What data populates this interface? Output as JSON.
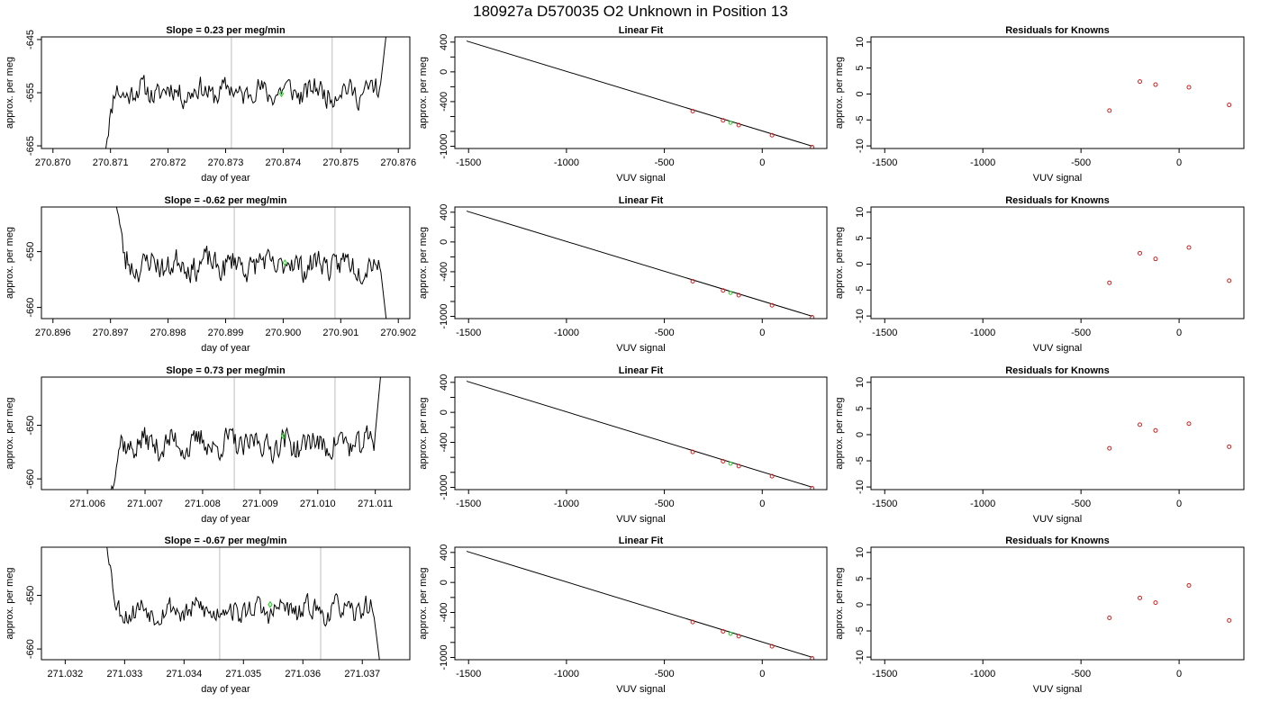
{
  "title": "180927a      D570035   O2 Unknown in Position  13",
  "colors": {
    "trace": "#000000",
    "marker": "#22cc22",
    "residual": "#cc2222",
    "vline": "#c8c8c8",
    "frame": "#000000"
  },
  "chart_data": [
    {
      "type": "line",
      "panel": "row1-time",
      "title": "Slope =  0.23  per meg/min",
      "xlabel": "day of year",
      "ylabel": "approx. per meg",
      "xlim": [
        270.8698,
        270.8762
      ],
      "ylim": [
        -665.5,
        -644.5
      ],
      "xticks": [
        "270.870",
        "270.871",
        "270.872",
        "270.873",
        "270.874",
        "270.875",
        "270.876"
      ],
      "xtick_values": [
        270.87,
        270.871,
        270.872,
        270.873,
        270.874,
        270.875,
        270.876
      ],
      "yticks": [
        "-665",
        "-655",
        "-645"
      ],
      "ytick_values": [
        -665,
        -655,
        -645
      ],
      "vlines": [
        270.8731,
        270.87485
      ],
      "trace": {
        "x_start": 270.8709,
        "x_end": 270.8758,
        "baseline": -654.8,
        "start_value": -666,
        "end_value": -643,
        "noise": 2.0,
        "seed": 11
      },
      "marker": {
        "x": 270.87397,
        "y": -655.2
      }
    },
    {
      "type": "scatter",
      "panel": "row1-fit",
      "title": "Linear Fit",
      "xlabel": "VUV signal",
      "ylabel": "approx. per meg",
      "xlim": [
        -1570,
        330
      ],
      "ylim": [
        -1030,
        470
      ],
      "xticks": [
        "-1500",
        "-1000",
        "-500",
        "0"
      ],
      "xtick_values": [
        -1500,
        -1000,
        -500,
        0
      ],
      "yticks": [
        "-1000",
        "-800",
        "-600",
        "-400",
        "-200",
        "0",
        "200",
        "400"
      ],
      "ytick_values": [
        -1000,
        -800,
        -600,
        -400,
        -200,
        0,
        200,
        400
      ],
      "ytick_labels_shown": [
        "-1000",
        "-400",
        "0",
        "400"
      ],
      "line": {
        "x": [
          -1510,
          255
        ],
        "y": [
          415,
          -998
        ]
      },
      "knowns": {
        "x": [
          -355,
          -200,
          -120,
          50,
          255
        ],
        "y": [
          -528,
          -652,
          -716,
          -852,
          -1012
        ]
      },
      "unknown": {
        "x": -162,
        "y": -683
      }
    },
    {
      "type": "scatter",
      "panel": "row1-resid",
      "title": "Residuals for Knowns",
      "xlabel": "VUV signal",
      "ylabel": "approx. per meg",
      "xlim": [
        -1570,
        330
      ],
      "ylim": [
        -10.5,
        11
      ],
      "xticks": [
        "-1500",
        "-1000",
        "-500",
        "0"
      ],
      "xtick_values": [
        -1500,
        -1000,
        -500,
        0
      ],
      "yticks": [
        "-10",
        "-5",
        "0",
        "5",
        "10"
      ],
      "ytick_values": [
        -10,
        -5,
        0,
        5,
        10
      ],
      "x": [
        -355,
        -200,
        -120,
        50,
        255
      ],
      "y": [
        -3.2,
        2.4,
        1.8,
        1.3,
        -2.1
      ]
    },
    {
      "type": "line",
      "panel": "row2-time",
      "title": "Slope =  -0.62  per meg/min",
      "xlabel": "day of year",
      "ylabel": "approx. per meg",
      "xlim": [
        270.8958,
        270.9022
      ],
      "ylim": [
        -662,
        -642
      ],
      "xticks": [
        "270.896",
        "270.897",
        "270.898",
        "270.899",
        "270.900",
        "270.901",
        "270.902"
      ],
      "xtick_values": [
        270.896,
        270.897,
        270.898,
        270.899,
        270.9,
        270.901,
        270.902
      ],
      "yticks": [
        "-660",
        "-650"
      ],
      "ytick_values": [
        -660,
        -650
      ],
      "vlines": [
        270.89915,
        270.9009
      ],
      "trace": {
        "x_start": 270.8971,
        "x_end": 270.9018,
        "baseline": -652.3,
        "start_value": -641,
        "end_value": -663,
        "noise": 2.1,
        "seed": 23
      },
      "marker": {
        "x": 270.90003,
        "y": -652.0
      }
    },
    {
      "type": "scatter",
      "panel": "row2-fit",
      "title": "Linear Fit",
      "xlabel": "VUV signal",
      "ylabel": "approx. per meg",
      "xlim": [
        -1570,
        330
      ],
      "ylim": [
        -1030,
        470
      ],
      "xticks": [
        "-1500",
        "-1000",
        "-500",
        "0"
      ],
      "xtick_values": [
        -1500,
        -1000,
        -500,
        0
      ],
      "yticks": [
        "-1000",
        "-800",
        "-600",
        "-400",
        "-200",
        "0",
        "200",
        "400"
      ],
      "ytick_values": [
        -1000,
        -800,
        -600,
        -400,
        -200,
        0,
        200,
        400
      ],
      "ytick_labels_shown": [
        "-1000",
        "-400",
        "0",
        "400"
      ],
      "line": {
        "x": [
          -1510,
          255
        ],
        "y": [
          415,
          -998
        ]
      },
      "knowns": {
        "x": [
          -355,
          -200,
          -120,
          50,
          255
        ],
        "y": [
          -528,
          -652,
          -716,
          -852,
          -1012
        ]
      },
      "unknown": {
        "x": -162,
        "y": -683
      }
    },
    {
      "type": "scatter",
      "panel": "row2-resid",
      "title": "Residuals for Knowns",
      "xlabel": "VUV signal",
      "ylabel": "approx. per meg",
      "xlim": [
        -1570,
        330
      ],
      "ylim": [
        -10.5,
        11
      ],
      "xticks": [
        "-1500",
        "-1000",
        "-500",
        "0"
      ],
      "xtick_values": [
        -1500,
        -1000,
        -500,
        0
      ],
      "yticks": [
        "-10",
        "-5",
        "0",
        "5",
        "10"
      ],
      "ytick_values": [
        -10,
        -5,
        0,
        5,
        10
      ],
      "x": [
        -355,
        -200,
        -120,
        50,
        255
      ],
      "y": [
        -3.6,
        2.1,
        1.0,
        3.2,
        -3.2
      ]
    },
    {
      "type": "line",
      "panel": "row3-time",
      "title": "Slope =  0.73  per meg/min",
      "xlabel": "day of year",
      "ylabel": "approx. per meg",
      "xlim": [
        271.0052,
        271.0116
      ],
      "ylim": [
        -662,
        -641
      ],
      "xticks": [
        "271.006",
        "271.007",
        "271.008",
        "271.009",
        "271.010",
        "271.011"
      ],
      "xtick_values": [
        271.006,
        271.007,
        271.008,
        271.009,
        271.01,
        271.011
      ],
      "yticks": [
        "-660",
        "-650"
      ],
      "ytick_values": [
        -660,
        -650
      ],
      "vlines": [
        271.00855,
        271.0103
      ],
      "trace": {
        "x_start": 271.0064,
        "x_end": 271.0111,
        "baseline": -653.5,
        "start_value": -663,
        "end_value": -640,
        "noise": 2.2,
        "seed": 37
      },
      "marker": {
        "x": 271.0094,
        "y": -652.0
      }
    },
    {
      "type": "scatter",
      "panel": "row3-fit",
      "title": "Linear Fit",
      "xlabel": "VUV signal",
      "ylabel": "approx. per meg",
      "xlim": [
        -1570,
        330
      ],
      "ylim": [
        -1030,
        470
      ],
      "xticks": [
        "-1500",
        "-1000",
        "-500",
        "0"
      ],
      "xtick_values": [
        -1500,
        -1000,
        -500,
        0
      ],
      "yticks": [
        "-1000",
        "-800",
        "-600",
        "-400",
        "-200",
        "0",
        "200",
        "400"
      ],
      "ytick_values": [
        -1000,
        -800,
        -600,
        -400,
        -200,
        0,
        200,
        400
      ],
      "ytick_labels_shown": [
        "-1000",
        "-400",
        "0",
        "400"
      ],
      "line": {
        "x": [
          -1510,
          255
        ],
        "y": [
          415,
          -998
        ]
      },
      "knowns": {
        "x": [
          -355,
          -200,
          -120,
          50,
          255
        ],
        "y": [
          -528,
          -652,
          -716,
          -852,
          -1012
        ]
      },
      "unknown": {
        "x": -162,
        "y": -683
      }
    },
    {
      "type": "scatter",
      "panel": "row3-resid",
      "title": "Residuals for Knowns",
      "xlabel": "VUV signal",
      "ylabel": "approx. per meg",
      "xlim": [
        -1570,
        330
      ],
      "ylim": [
        -10.5,
        11
      ],
      "xticks": [
        "-1500",
        "-1000",
        "-500",
        "0"
      ],
      "xtick_values": [
        -1500,
        -1000,
        -500,
        0
      ],
      "yticks": [
        "-10",
        "-5",
        "0",
        "5",
        "10"
      ],
      "ytick_values": [
        -10,
        -5,
        0,
        5,
        10
      ],
      "x": [
        -355,
        -200,
        -120,
        50,
        255
      ],
      "y": [
        -2.6,
        1.9,
        0.8,
        2.1,
        -2.3
      ]
    },
    {
      "type": "line",
      "panel": "row4-time",
      "title": "Slope =  -0.67  per meg/min",
      "xlabel": "day of year",
      "ylabel": "approx. per meg",
      "xlim": [
        271.0316,
        271.0378
      ],
      "ylim": [
        -662,
        -641
      ],
      "xticks": [
        "271.032",
        "271.033",
        "271.034",
        "271.035",
        "271.036",
        "271.037"
      ],
      "xtick_values": [
        271.032,
        271.033,
        271.034,
        271.035,
        271.036,
        271.037
      ],
      "yticks": [
        "-660",
        "-650"
      ],
      "ytick_values": [
        -660,
        -650
      ],
      "vlines": [
        271.0346,
        271.0363
      ],
      "trace": {
        "x_start": 271.0327,
        "x_end": 271.0373,
        "baseline": -652.8,
        "start_value": -640,
        "end_value": -663,
        "noise": 1.9,
        "seed": 53
      },
      "marker": {
        "x": 271.03545,
        "y": -651.7
      }
    },
    {
      "type": "scatter",
      "panel": "row4-fit",
      "title": "Linear Fit",
      "xlabel": "VUV signal",
      "ylabel": "approx. per meg",
      "xlim": [
        -1570,
        330
      ],
      "ylim": [
        -1030,
        470
      ],
      "xticks": [
        "-1500",
        "-1000",
        "-500",
        "0"
      ],
      "xtick_values": [
        -1500,
        -1000,
        -500,
        0
      ],
      "yticks": [
        "-1000",
        "-800",
        "-600",
        "-400",
        "-200",
        "0",
        "200",
        "400"
      ],
      "ytick_values": [
        -1000,
        -800,
        -600,
        -400,
        -200,
        0,
        200,
        400
      ],
      "ytick_labels_shown": [
        "-1000",
        "-400",
        "0",
        "400"
      ],
      "line": {
        "x": [
          -1510,
          255
        ],
        "y": [
          415,
          -998
        ]
      },
      "knowns": {
        "x": [
          -355,
          -200,
          -120,
          50,
          255
        ],
        "y": [
          -528,
          -652,
          -716,
          -852,
          -1012
        ]
      },
      "unknown": {
        "x": -162,
        "y": -683
      }
    },
    {
      "type": "scatter",
      "panel": "row4-resid",
      "title": "Residuals for Knowns",
      "xlabel": "VUV signal",
      "ylabel": "approx. per meg",
      "xlim": [
        -1570,
        330
      ],
      "ylim": [
        -10.5,
        11
      ],
      "xticks": [
        "-1500",
        "-1000",
        "-500",
        "0"
      ],
      "xtick_values": [
        -1500,
        -1000,
        -500,
        0
      ],
      "yticks": [
        "-10",
        "-5",
        "0",
        "5",
        "10"
      ],
      "ytick_values": [
        -10,
        -5,
        0,
        5,
        10
      ],
      "x": [
        -355,
        -200,
        -120,
        50,
        255
      ],
      "y": [
        -2.5,
        1.3,
        0.4,
        3.7,
        -3.0
      ]
    }
  ]
}
